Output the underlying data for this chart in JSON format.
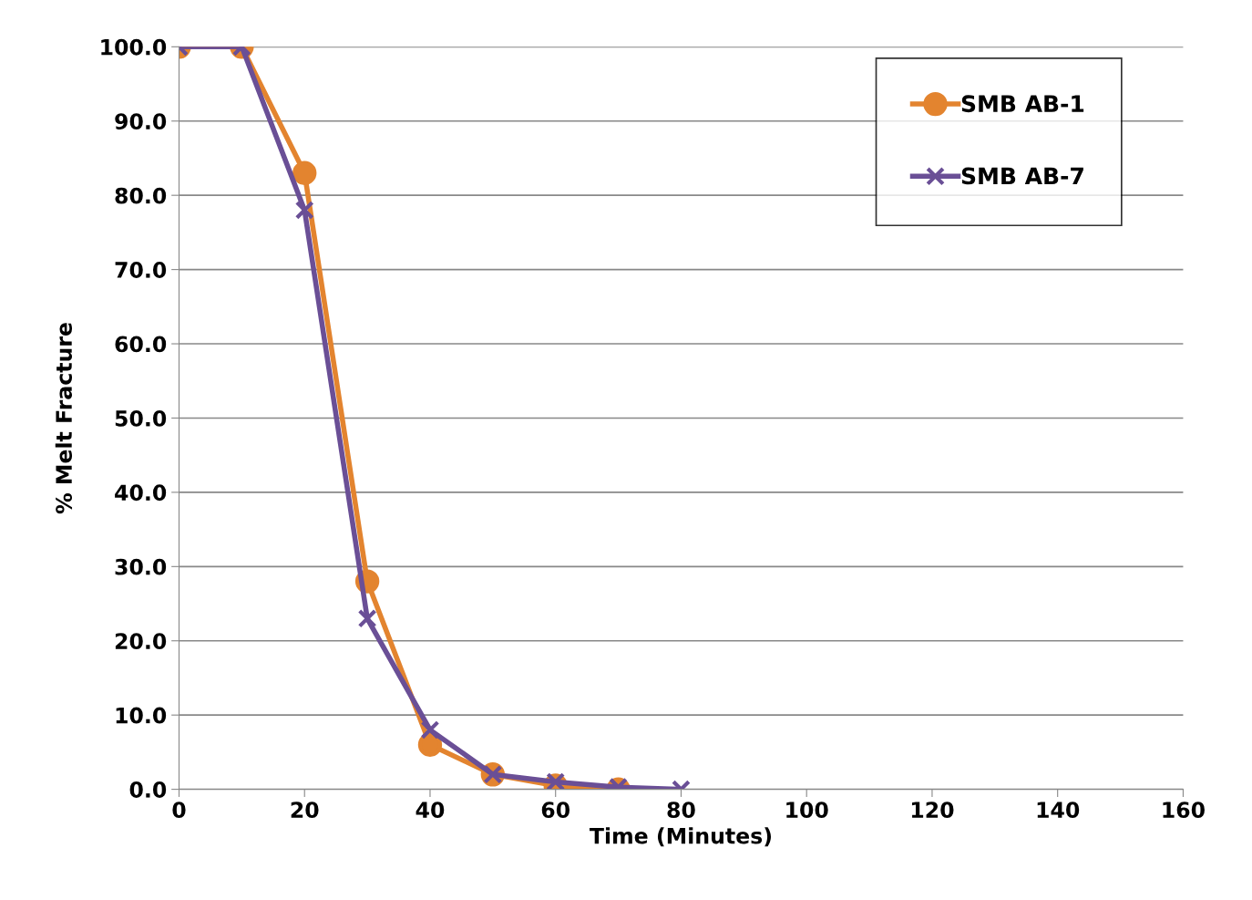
{
  "chart_data": {
    "type": "line",
    "xlabel": "Time (Minutes)",
    "ylabel": "% Melt Fracture",
    "series": [
      {
        "name": "SMB AB-1",
        "color": "#e3842f",
        "marker": "circle",
        "x": [
          0,
          10,
          20,
          30,
          40,
          50,
          60,
          70
        ],
        "values": [
          100,
          100,
          83,
          28,
          6,
          2,
          0.5,
          0
        ]
      },
      {
        "name": "SMB AB-7",
        "color": "#6a4f96",
        "marker": "cross",
        "x": [
          0,
          10,
          20,
          30,
          40,
          50,
          60,
          70,
          80
        ],
        "values": [
          100,
          100,
          78,
          23,
          8,
          2,
          1,
          0.3,
          0
        ]
      }
    ],
    "xlim": [
      0,
      160
    ],
    "xticks": [
      0,
      20,
      40,
      60,
      80,
      100,
      120,
      140,
      160
    ],
    "ylim": [
      0,
      100
    ],
    "yticks": [
      {
        "value": 0,
        "label": "0.0"
      },
      {
        "value": 10,
        "label": "10.0"
      },
      {
        "value": 20,
        "label": "20.0"
      },
      {
        "value": 30,
        "label": "30.0"
      },
      {
        "value": 40,
        "label": "40.0"
      },
      {
        "value": 50,
        "label": "50.0"
      },
      {
        "value": 60,
        "label": "60.0"
      },
      {
        "value": 70,
        "label": "70.0"
      },
      {
        "value": 80,
        "label": "80.0"
      },
      {
        "value": 90,
        "label": "90.0"
      },
      {
        "value": 100,
        "label": "100.0"
      }
    ],
    "grid": "y",
    "legend": "top right",
    "line_style": "solid"
  }
}
